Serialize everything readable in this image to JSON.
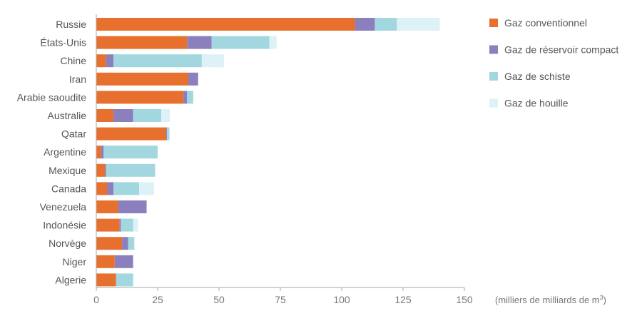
{
  "chart_data": {
    "type": "bar",
    "orientation": "horizontal",
    "stacked": true,
    "categories": [
      "Russie",
      "États-Unis",
      "Chine",
      "Iran",
      "Arabie saoudite",
      "Australie",
      "Qatar",
      "Argentine",
      "Mexique",
      "Canada",
      "Venezuela",
      "Indonésie",
      "Norvège",
      "Niger",
      "Algerie"
    ],
    "series": [
      {
        "name": "Gaz conventionnel",
        "color": "#E8702F",
        "values": [
          105.5,
          37,
          4,
          37.5,
          35.5,
          7,
          28.5,
          2,
          3.5,
          4.5,
          9,
          9.5,
          10.5,
          7.5,
          8
        ]
      },
      {
        "name": "Gaz de réservoir compact",
        "color": "#8B7FBD",
        "values": [
          8,
          10,
          3,
          4,
          1.5,
          8,
          0.3,
          1,
          0.5,
          2.5,
          11.5,
          0.5,
          2.5,
          7.5,
          0
        ]
      },
      {
        "name": "Gaz de schiste",
        "color": "#A3D7E0",
        "values": [
          9,
          23.5,
          36,
          0,
          2.5,
          11.5,
          1,
          22,
          20,
          10.5,
          0,
          5,
          2.5,
          0,
          7
        ]
      },
      {
        "name": "Gaz de houille",
        "color": "#DDF2F6",
        "values": [
          17.5,
          3,
          9,
          0,
          0,
          3.5,
          0,
          0,
          0,
          6,
          0,
          2,
          0,
          0,
          0
        ]
      }
    ],
    "xlim": [
      0,
      150
    ],
    "xticks": [
      0,
      25,
      50,
      75,
      100,
      125,
      150
    ],
    "xlabel_parts": {
      "text": "(milliers de milliards de m",
      "sup": "3",
      "close": ")"
    },
    "grid": false,
    "legend_position": "right"
  }
}
